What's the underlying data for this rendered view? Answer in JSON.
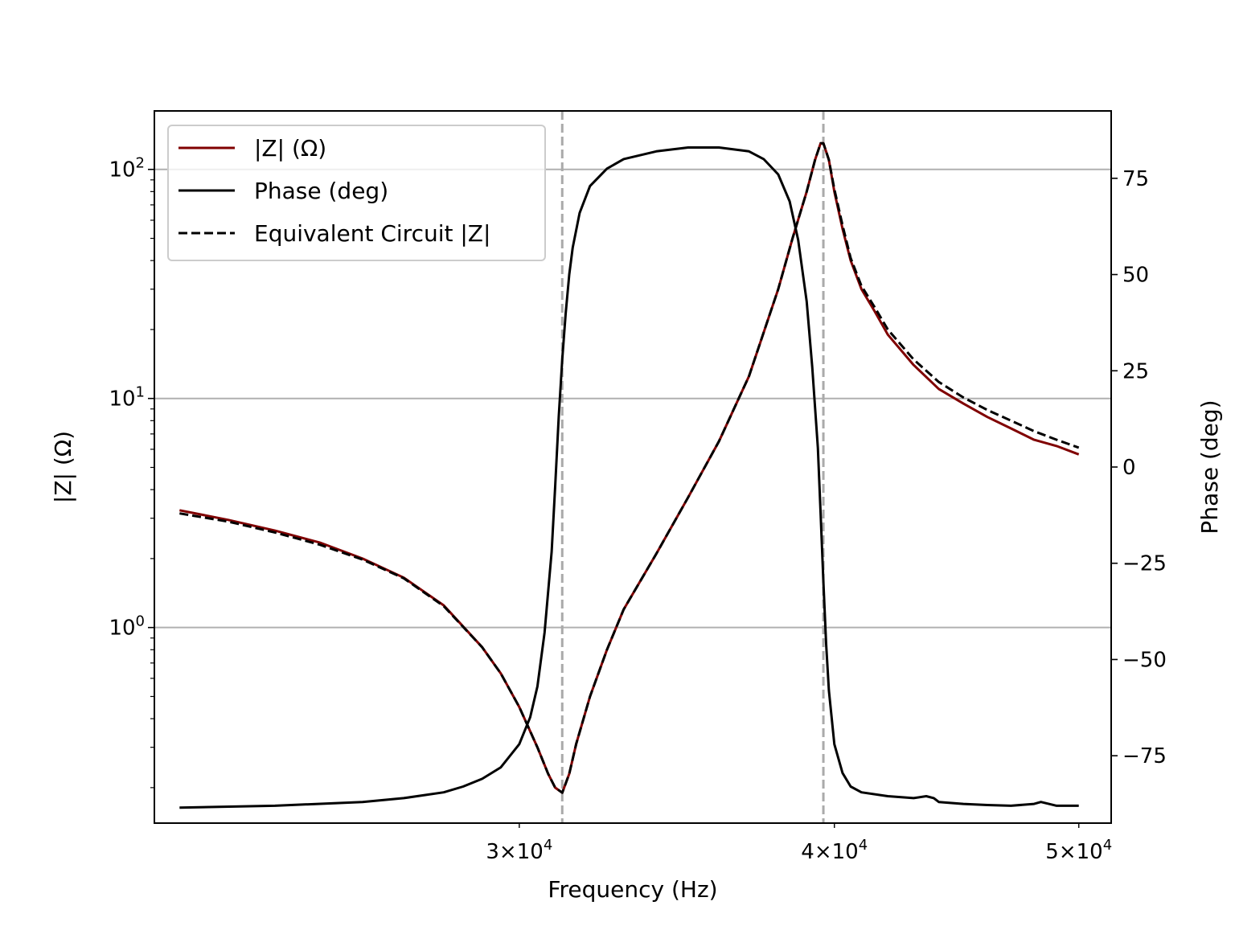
{
  "chart_data": {
    "type": "line",
    "xlabel": "Frequency (Hz)",
    "ylabel_left": "|Z| (Ω)",
    "ylabel_right": "Phase (deg)",
    "xscale": "log",
    "yscale_left": "log",
    "xlim": [
      21500,
      51500
    ],
    "ylim_left": [
      0.14,
      180
    ],
    "ylim_right": [
      -92.5,
      92.5
    ],
    "x_ticks": [
      {
        "value": 30000,
        "base": "3",
        "exp": "4"
      },
      {
        "value": 40000,
        "base": "4",
        "exp": "4"
      },
      {
        "value": 50000,
        "base": "5",
        "exp": "4"
      }
    ],
    "y_ticks_left": [
      {
        "value": 1,
        "base": "10",
        "exp": "0"
      },
      {
        "value": 10,
        "base": "10",
        "exp": "1"
      },
      {
        "value": 100,
        "base": "10",
        "exp": "2"
      }
    ],
    "y_ticks_right": [
      {
        "value": -75,
        "label": "−75"
      },
      {
        "value": -50,
        "label": "−50"
      },
      {
        "value": -25,
        "label": "−25"
      },
      {
        "value": 0,
        "label": "0"
      },
      {
        "value": 25,
        "label": "25"
      },
      {
        "value": 50,
        "label": "50"
      },
      {
        "value": 75,
        "label": "75"
      }
    ],
    "grid": "horizontal (left axis major)",
    "legend_position": "upper-left",
    "vlines": [
      31200,
      39600
    ],
    "colors": {
      "magnitude": "#800000",
      "phase": "#000000",
      "equivalent": "#000000",
      "grid": "#b0b0b0",
      "vline": "#aaaaaa"
    },
    "series": [
      {
        "name": "|Z| (Ω)",
        "axis": "left",
        "style": "solid",
        "x": [
          22000,
          23000,
          24000,
          25000,
          26000,
          27000,
          28000,
          29000,
          29500,
          30000,
          30500,
          30800,
          31000,
          31200,
          31400,
          31600,
          32000,
          32500,
          33000,
          34000,
          35000,
          36000,
          37000,
          38000,
          38500,
          39000,
          39300,
          39500,
          39600,
          39800,
          40000,
          40300,
          40600,
          41000,
          41500,
          42000,
          43000,
          44000,
          45000,
          46000,
          47000,
          48000,
          49000,
          50000
        ],
        "y": [
          3.25,
          2.95,
          2.65,
          2.35,
          2.0,
          1.65,
          1.25,
          0.82,
          0.63,
          0.45,
          0.3,
          0.23,
          0.2,
          0.19,
          0.23,
          0.31,
          0.5,
          0.8,
          1.2,
          2.1,
          3.7,
          6.5,
          12.5,
          30,
          50,
          80,
          110,
          130,
          130,
          110,
          80,
          55,
          40,
          30,
          24,
          19,
          14,
          11,
          9.5,
          8.3,
          7.4,
          6.6,
          6.2,
          5.7
        ]
      },
      {
        "name": "Phase (deg)",
        "axis": "right",
        "style": "solid",
        "x": [
          22000,
          24000,
          26000,
          27000,
          28000,
          28500,
          29000,
          29500,
          30000,
          30300,
          30500,
          30700,
          30900,
          31000,
          31100,
          31200,
          31300,
          31400,
          31500,
          31700,
          32000,
          32500,
          33000,
          34000,
          35000,
          36000,
          37000,
          37500,
          38000,
          38400,
          38700,
          39000,
          39200,
          39400,
          39500,
          39600,
          39700,
          39800,
          40000,
          40300,
          40600,
          41000,
          42000,
          43000,
          43500,
          43800,
          44000,
          45000,
          46000,
          47000,
          48000,
          48300,
          49000,
          50000
        ],
        "y": [
          -88.5,
          -88.0,
          -87.0,
          -86.0,
          -84.5,
          -83.0,
          -81.0,
          -78.0,
          -72.0,
          -65.0,
          -57.0,
          -43.0,
          -22.0,
          -5.0,
          13.0,
          28.0,
          40.0,
          50.0,
          57.0,
          66.0,
          73.0,
          77.5,
          80.0,
          82.0,
          83.0,
          83.0,
          82.0,
          80.0,
          76.0,
          69.0,
          59.0,
          43.0,
          26.0,
          5.0,
          -12.0,
          -30.0,
          -46.0,
          -58.0,
          -72.0,
          -79.5,
          -83.0,
          -84.5,
          -85.5,
          -86.0,
          -85.5,
          -86.0,
          -87.0,
          -87.5,
          -87.8,
          -88.0,
          -87.5,
          -87.0,
          -88.0,
          -88.0
        ]
      },
      {
        "name": "Equivalent Circuit |Z|",
        "axis": "left",
        "style": "dashed",
        "x": [
          22000,
          23000,
          24000,
          25000,
          26000,
          27000,
          28000,
          29000,
          29500,
          30000,
          30500,
          30800,
          31000,
          31200,
          31400,
          31600,
          32000,
          32500,
          33000,
          34000,
          35000,
          36000,
          37000,
          38000,
          38500,
          39000,
          39300,
          39500,
          39600,
          39800,
          40000,
          40300,
          40600,
          41000,
          41500,
          42000,
          43000,
          44000,
          45000,
          46000,
          47000,
          48000,
          49000,
          50000
        ],
        "y": [
          3.15,
          2.9,
          2.6,
          2.3,
          1.98,
          1.64,
          1.24,
          0.82,
          0.63,
          0.45,
          0.3,
          0.23,
          0.2,
          0.19,
          0.23,
          0.31,
          0.5,
          0.8,
          1.2,
          2.1,
          3.7,
          6.5,
          12.5,
          30,
          50,
          80,
          110,
          130,
          130,
          110,
          82,
          57,
          41,
          31,
          25,
          20,
          14.8,
          11.8,
          10.1,
          8.9,
          8.0,
          7.2,
          6.6,
          6.1
        ]
      }
    ]
  }
}
